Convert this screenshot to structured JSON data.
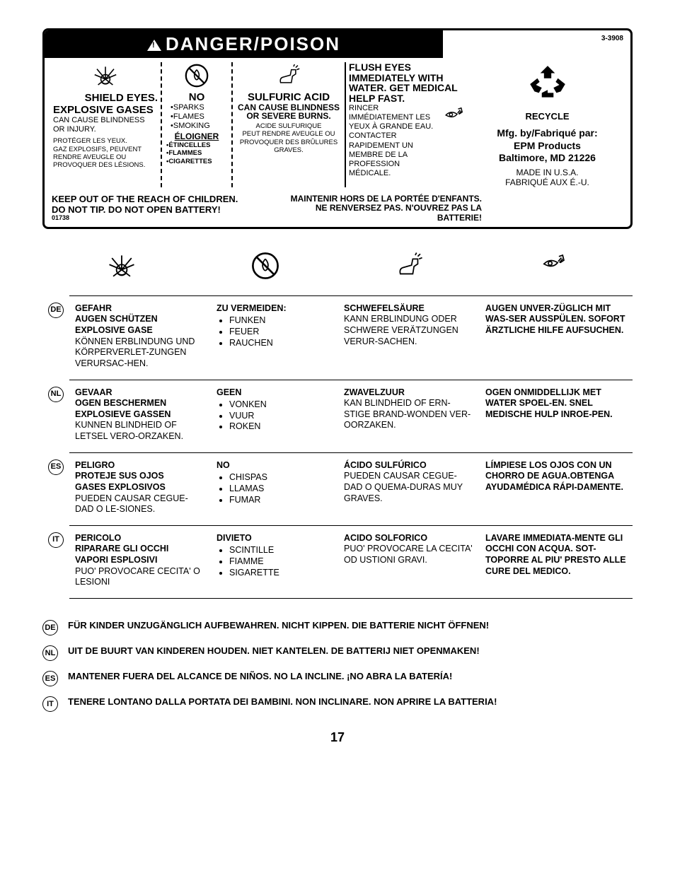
{
  "partNo": "3-3908",
  "header": "DANGER/POISON",
  "col1": {
    "h1": "SHIELD EYES.",
    "h2": "EXPLOSIVE GASES",
    "t1": "CAN CAUSE BLINDNESS OR INJURY.",
    "t2": "PROTÉGER LES YEUX.",
    "t3": "GAZ EXPLOSIFS, PEUVENT RENDRE AVEUGLE OU PROVOQUER DES LÉSIONS."
  },
  "col2": {
    "h1": "NO",
    "l1": "•SPARKS",
    "l2": "•FLAMES",
    "l3": "•SMOKING",
    "h2": "ÉLOIGNER",
    "l4": "•ÉTINCELLES",
    "l5": "•FLAMMES",
    "l6": "•CIGARETTES"
  },
  "col3": {
    "h1": "SULFURIC ACID",
    "h2": "CAN CAUSE BLINDNESS OR SEVERE BURNS.",
    "t1": "ACIDE SULFURIQUE",
    "t2": "PEUT RENDRE AVEUGLE OU PROVOQUER DES BRÛLURES GRAVES."
  },
  "col4": {
    "h1": "FLUSH EYES IMMEDIATELY WITH WATER. GET MEDICAL HELP FAST.",
    "t1": "RINCER IMMÉDIATEMENT LES YEUX À GRANDE EAU. CONTACTER RAPIDEMENT UN MEMBRE DE LA PROFESSION MÉDICALE."
  },
  "col5": {
    "recycle": "RECYCLE",
    "mfg1": "Mfg. by/Fabriqué par:",
    "mfg2": "EPM Products",
    "mfg3": "Baltimore, MD 21226",
    "made1": "MADE IN U.S.A.",
    "made2": "FABRIQUÉ AUX É.-U."
  },
  "footer": {
    "l1": "KEEP OUT OF THE REACH OF CHILDREN.",
    "l2": "DO NOT TIP. DO NOT OPEN BATTERY!",
    "l3": "01738",
    "r1": "MAINTENIR HORS DE LA PORTÉE D'ENFANTS.",
    "r2": "NE RENVERSEZ PAS. N'OUVREZ PAS LA BATTERIE!"
  },
  "langs": [
    {
      "code": "DE",
      "c1h": [
        "GEFAHR",
        "AUGEN SCHÜTZEN",
        "EXPLOSIVE GASE"
      ],
      "c1t": "KÖNNEN ERBLINDUNG UND KÖRPERVERLET-ZUNGEN VERURSAC-HEN.",
      "c2h": "ZU VERMEIDEN:",
      "c2l": [
        "FUNKEN",
        "FEUER",
        "RAUCHEN"
      ],
      "c3h": "SCHWEFELSÄURE",
      "c3t": "KANN ERBLINDUNG ODER SCHWERE VERÄTZUNGEN VERUR-SACHEN.",
      "c4": "AUGEN UNVER-ZÜGLICH MIT WAS-SER AUSSPÜLEN. SOFORT ÄRZTLICHE HILFE AUFSUCHEN."
    },
    {
      "code": "NL",
      "c1h": [
        "GEVAAR",
        "OGEN BESCHERMEN",
        "EXPLOSIEVE GASSEN"
      ],
      "c1t": "KUNNEN BLINDHEID OF LETSEL VERO-ORZAKEN.",
      "c2h": "GEEN",
      "c2l": [
        "VONKEN",
        "VUUR",
        "ROKEN"
      ],
      "c3h": "ZWAVELZUUR",
      "c3t": "KAN BLINDHEID OF ERN-STIGE BRAND-WONDEN VER-OORZAKEN.",
      "c4": "OGEN ONMIDDELLIJK MET WATER SPOEL-EN. SNEL MEDISCHE HULP INROE-PEN."
    },
    {
      "code": "ES",
      "c1h": [
        "PELIGRO",
        "PROTEJE SUS OJOS",
        "GASES EXPLOSIVOS"
      ],
      "c1t": "PUEDEN CAUSAR CEGUE-DAD O LE-SIONES.",
      "c2h": "NO",
      "c2l": [
        "CHISPAS",
        "LLAMAS",
        "FUMAR"
      ],
      "c3h": "ÁCIDO SULFÚRICO",
      "c3t": "PUEDEN CAUSAR CEGUE-DAD O QUEMA-DURAS MUY GRAVES.",
      "c4": "LÍMPIESE LOS OJOS CON UN CHORRO DE AGUA.OBTENGA AYUDAMÉDICA RÁPI-DAMENTE."
    },
    {
      "code": "IT",
      "c1h": [
        "PERICOLO",
        "RIPARARE GLI OCCHI",
        "VAPORI ESPLOSIVI"
      ],
      "c1t": "PUO' PROVOCARE CECITA' O LESIONI",
      "c2h": "DIVIETO",
      "c2l": [
        "SCINTILLE",
        "FIAMME",
        "SIGARETTE"
      ],
      "c3h": "ACIDO SOLFORICO",
      "c3t": "PUO' PROVOCARE LA CECITA' OD USTIONI GRAVI.",
      "c4": "LAVARE IMMEDIATA-MENTE GLI OCCHI CON ACQUA. SOT-TOPORRE AL PIU' PRESTO ALLE CURE DEL MEDICO."
    }
  ],
  "bottomLines": [
    {
      "code": "DE",
      "txt": "FÜR KINDER UNZUGÄNGLICH AUFBEWAHREN. NICHT KIPPEN. DIE BATTERIE NICHT ÖFFNEN!"
    },
    {
      "code": "NL",
      "txt": "UIT DE BUURT VAN KINDEREN HOUDEN. NIET KANTELEN. DE BATTERIJ NIET OPENMAKEN!"
    },
    {
      "code": "ES",
      "txt": "MANTENER  FUERA DEL ALCANCE DE NIÑOS. NO LA INCLINE. ¡NO ABRA LA BATERÍA!"
    },
    {
      "code": "IT",
      "txt": "TENERE LONTANO DALLA PORTATA DEI BAMBINI. NON INCLINARE. NON APRIRE LA BATTERIA!"
    }
  ],
  "pageNum": "17"
}
